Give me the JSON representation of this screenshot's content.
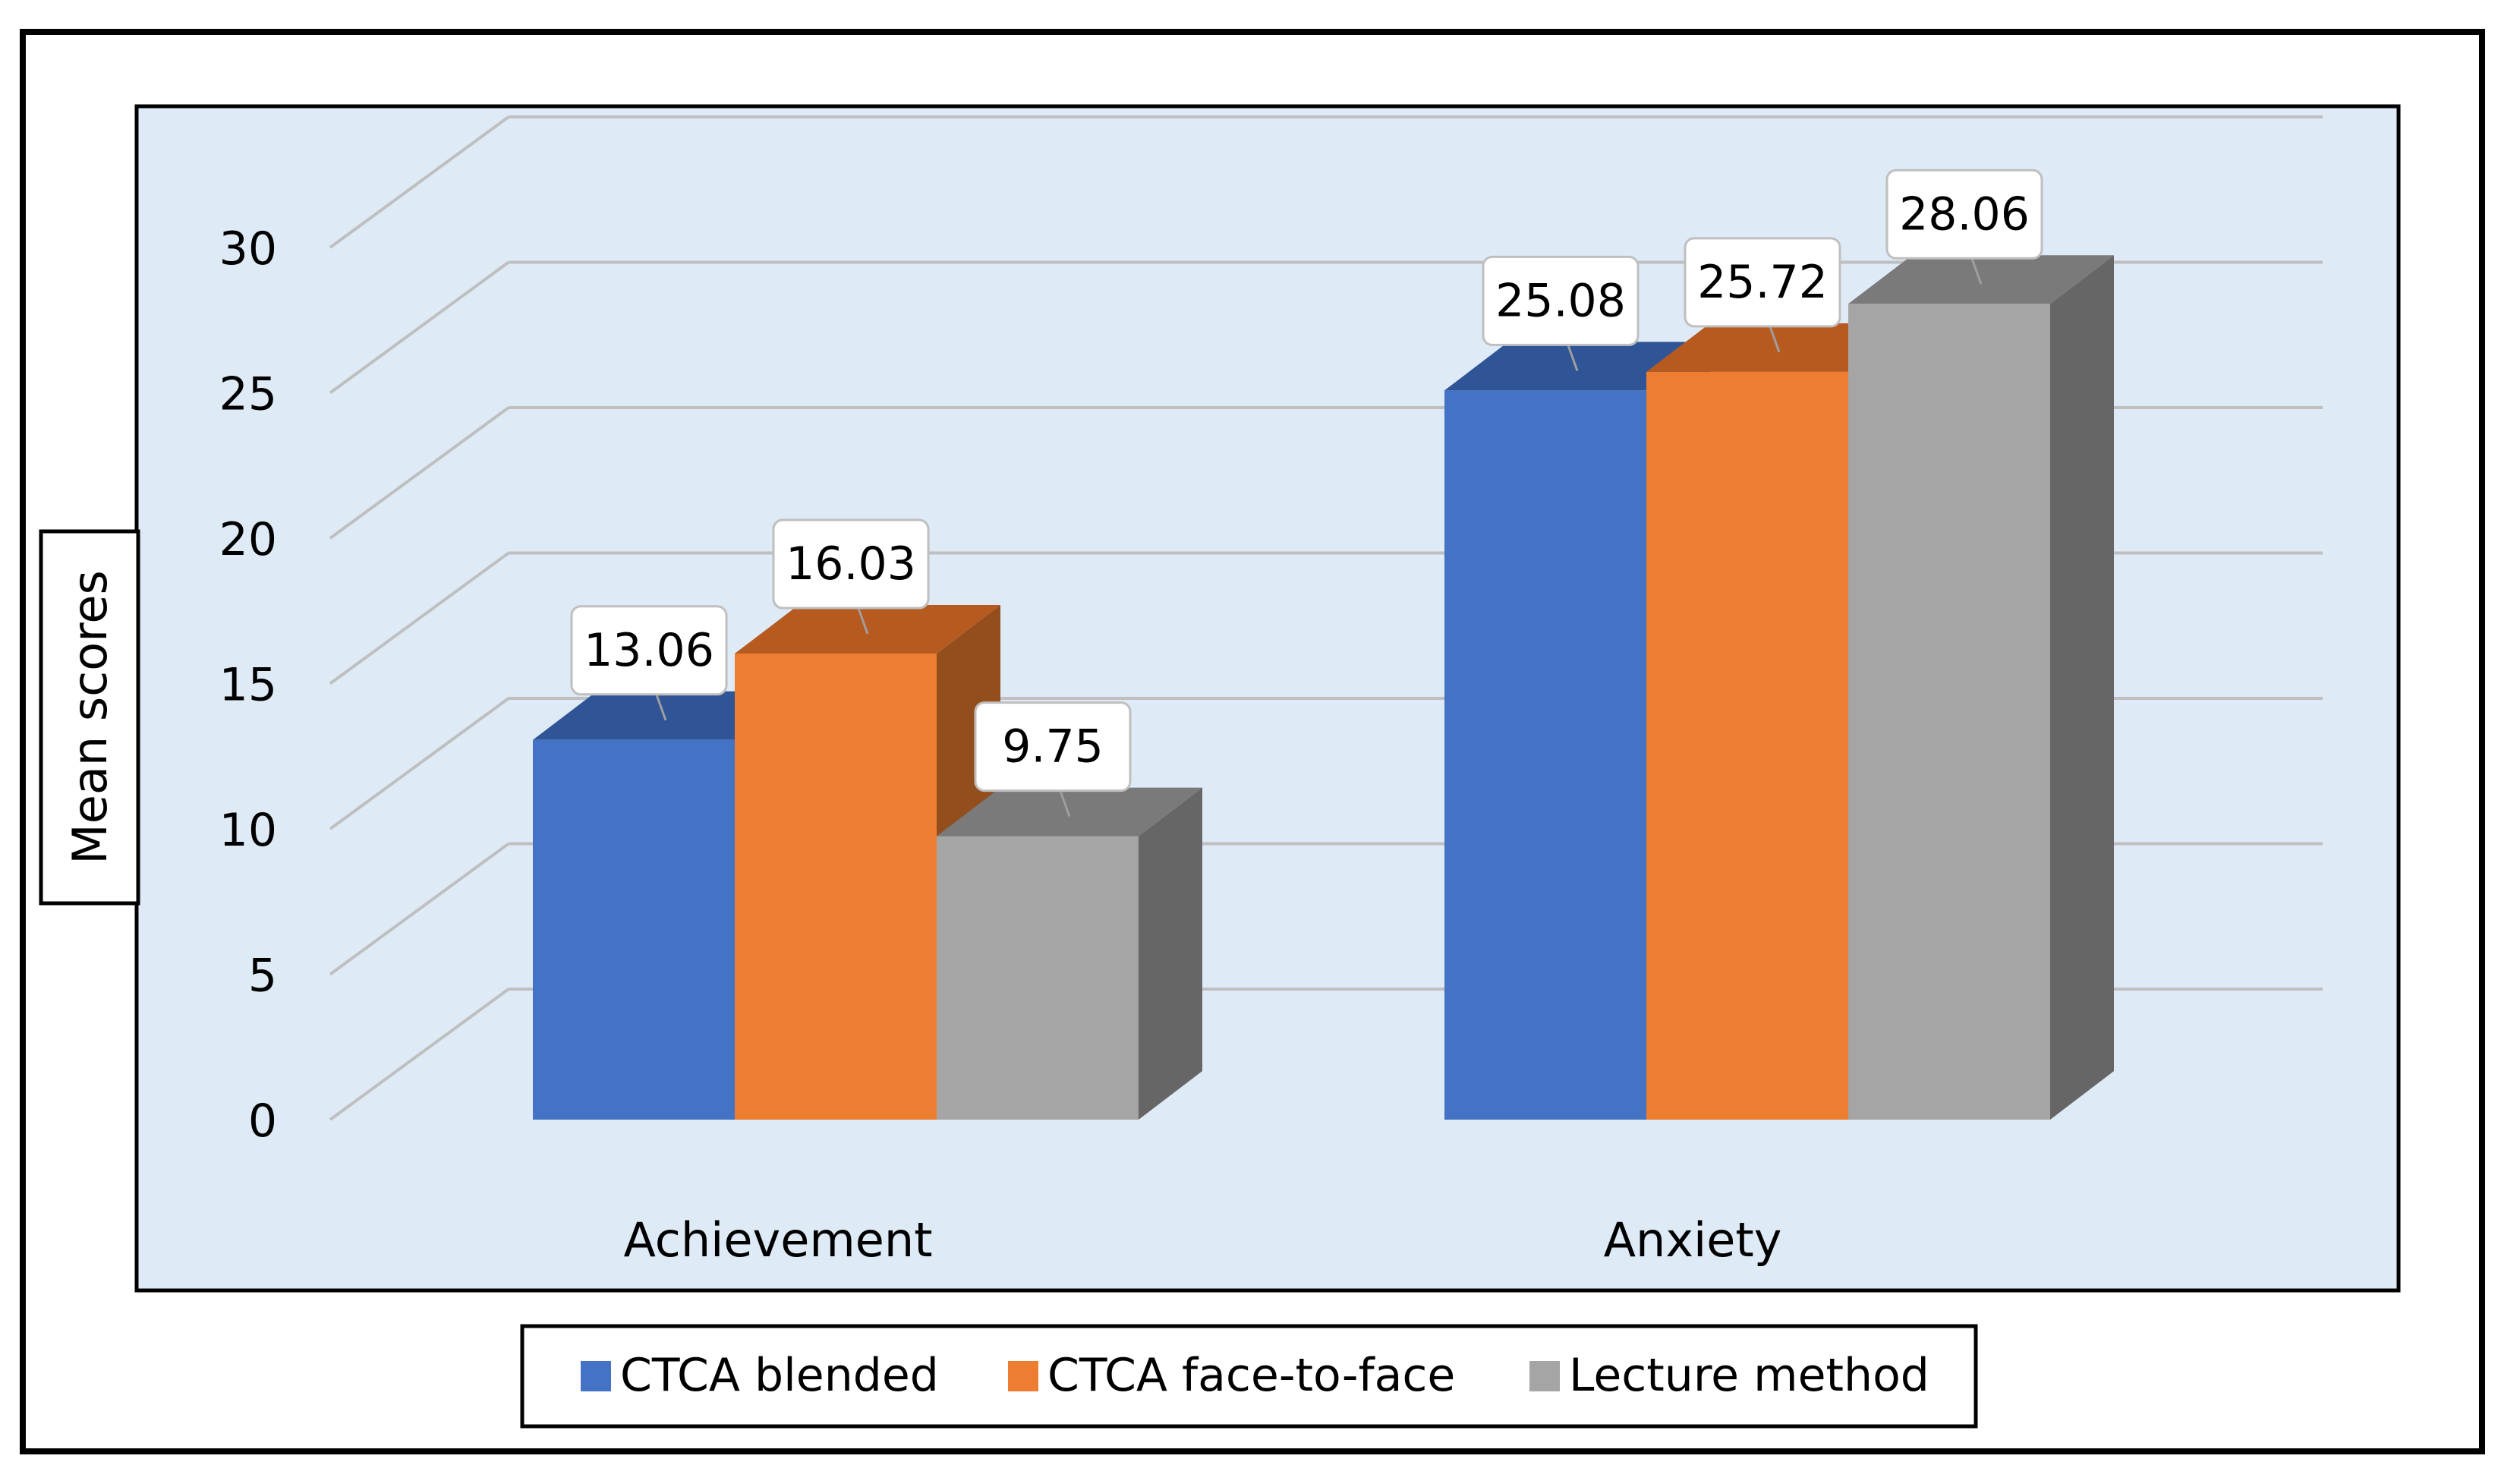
{
  "chart_data": {
    "type": "bar",
    "style": "3d-clustered-column",
    "categories": [
      "Achievement",
      "Anxiety"
    ],
    "series": [
      {
        "name": "CTCA blended",
        "values": [
          13.06,
          25.08
        ],
        "color": "#4472C4",
        "top_color": "#2F5597"
      },
      {
        "name": "CTCA face-to-face",
        "values": [
          16.03,
          25.72
        ],
        "color": "#ED7D31",
        "top_color": "#B65A20"
      },
      {
        "name": "Lecture method",
        "values": [
          9.75,
          28.06
        ],
        "color": "#A5A5A5",
        "top_color": "#7A7A7A"
      }
    ],
    "data_labels": [
      [
        "13.06",
        "25.08"
      ],
      [
        "16.03",
        "25.72"
      ],
      [
        "9.75",
        "28.06"
      ]
    ],
    "ylabel": "Mean scores",
    "xlabel": "",
    "ylim": [
      0,
      30
    ],
    "yticks": [
      0,
      5,
      10,
      15,
      20,
      25,
      30
    ],
    "grid": true,
    "legend_position": "bottom",
    "plot_background": "#DEEAF6",
    "gridline_color": "#BFBFBF",
    "side_color": "#6E6E6E",
    "blue_side_color": "#2F5597",
    "orange_side_color": "#A9531E"
  }
}
